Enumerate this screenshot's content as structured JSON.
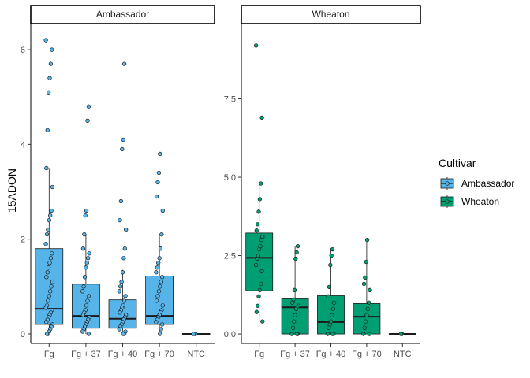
{
  "chart_data": {
    "type": "boxplot",
    "ylabel": "15ADON",
    "xlabel": "",
    "categories": [
      "Fg",
      "Fg + 37",
      "Fg + 40",
      "Fg + 70",
      "NTC"
    ],
    "legend": {
      "title": "Cultivar",
      "placement": "right",
      "entries": [
        {
          "name": "Ambassador",
          "color": "#56B4E9"
        },
        {
          "name": "Wheaton",
          "color": "#009E73"
        }
      ]
    },
    "facets": [
      {
        "title": "Ambassador",
        "color": "#56B4E9",
        "ylim": [
          -0.2,
          6.55
        ],
        "yticks": [
          0,
          2,
          4,
          6
        ],
        "ytick_labels": [
          "0",
          "2",
          "4",
          "6"
        ],
        "boxes": [
          {
            "category": "Fg",
            "q1": 0.2,
            "median": 0.53,
            "q3": 1.8,
            "whisker_low": 0.0,
            "whisker_high": 3.5,
            "points": [
              6.2,
              6.0,
              5.7,
              5.4,
              5.1,
              4.3,
              3.5,
              3.1,
              2.6,
              2.5,
              2.4,
              2.2,
              2.1,
              1.9,
              1.7,
              1.6,
              1.5,
              1.4,
              1.3,
              1.2,
              1.1,
              1.0,
              0.9,
              0.8,
              0.7,
              0.6,
              0.55,
              0.5,
              0.45,
              0.4,
              0.35,
              0.3,
              0.25,
              0.2,
              0.15,
              0.1,
              0.05,
              0.0,
              0.0
            ]
          },
          {
            "category": "Fg + 37",
            "q1": 0.12,
            "median": 0.38,
            "q3": 1.05,
            "whisker_low": 0.0,
            "whisker_high": 2.1,
            "points": [
              4.8,
              4.5,
              2.6,
              2.5,
              2.1,
              1.8,
              1.7,
              1.6,
              1.5,
              1.4,
              1.2,
              1.0,
              0.9,
              0.8,
              0.7,
              0.6,
              0.5,
              0.45,
              0.4,
              0.35,
              0.3,
              0.25,
              0.2,
              0.15,
              0.1,
              0.05,
              0.0
            ]
          },
          {
            "category": "Fg + 40",
            "q1": 0.12,
            "median": 0.32,
            "q3": 0.72,
            "whisker_low": 0.0,
            "whisker_high": 1.35,
            "points": [
              5.7,
              4.1,
              3.9,
              2.8,
              2.4,
              2.2,
              1.8,
              1.6,
              1.3,
              1.1,
              1.0,
              0.9,
              0.8,
              0.7,
              0.6,
              0.55,
              0.5,
              0.45,
              0.4,
              0.35,
              0.3,
              0.25,
              0.2,
              0.15,
              0.1,
              0.05,
              0.0,
              0.0
            ]
          },
          {
            "category": "Fg + 70",
            "q1": 0.2,
            "median": 0.38,
            "q3": 1.22,
            "whisker_low": 0.0,
            "whisker_high": 2.1,
            "points": [
              3.8,
              3.4,
              3.2,
              2.9,
              2.6,
              2.1,
              1.8,
              1.6,
              1.5,
              1.4,
              1.3,
              1.2,
              1.1,
              1.0,
              0.9,
              0.8,
              0.7,
              0.6,
              0.5,
              0.45,
              0.4,
              0.35,
              0.3,
              0.25,
              0.2,
              0.1,
              0.0
            ]
          },
          {
            "category": "NTC",
            "q1": 0.0,
            "median": 0.0,
            "q3": 0.0,
            "whisker_low": 0.0,
            "whisker_high": 0.0,
            "points": [
              0.0,
              0.0,
              0.0
            ]
          }
        ]
      },
      {
        "title": "Wheaton",
        "color": "#009E73",
        "ylim": [
          -0.3,
          9.9
        ],
        "yticks": [
          0,
          2.5,
          5,
          7.5
        ],
        "ytick_labels": [
          "0.0",
          "2.5",
          "5.0",
          "7.5"
        ],
        "boxes": [
          {
            "category": "Fg",
            "q1": 1.38,
            "median": 2.43,
            "q3": 3.22,
            "whisker_low": 0.38,
            "whisker_high": 4.8,
            "points": [
              9.2,
              6.9,
              4.8,
              4.3,
              3.9,
              3.5,
              3.3,
              3.1,
              3.0,
              2.8,
              2.7,
              2.5,
              2.4,
              2.2,
              2.0,
              1.6,
              1.4,
              1.2,
              0.9,
              0.7,
              0.4
            ]
          },
          {
            "category": "Fg + 37",
            "q1": 0.0,
            "median": 0.85,
            "q3": 1.12,
            "whisker_low": 0.0,
            "whisker_high": 2.8,
            "points": [
              2.8,
              2.6,
              2.4,
              1.4,
              1.1,
              1.0,
              0.9,
              0.85,
              0.8,
              0.6,
              0.4,
              0.2,
              0.0,
              0.0,
              0.0
            ]
          },
          {
            "category": "Fg + 40",
            "q1": 0.0,
            "median": 0.38,
            "q3": 1.22,
            "whisker_low": 0.0,
            "whisker_high": 2.7,
            "points": [
              2.7,
              2.5,
              2.2,
              1.5,
              1.2,
              1.0,
              0.8,
              0.6,
              0.4,
              0.3,
              0.2,
              0.0,
              0.0,
              0.0
            ]
          },
          {
            "category": "Fg + 70",
            "q1": 0.0,
            "median": 0.55,
            "q3": 0.97,
            "whisker_low": 0.0,
            "whisker_high": 3.0,
            "points": [
              3.0,
              2.3,
              1.8,
              1.6,
              1.4,
              1.0,
              0.8,
              0.6,
              0.4,
              0.2,
              0.0,
              0.0
            ]
          },
          {
            "category": "NTC",
            "q1": 0.0,
            "median": 0.0,
            "q3": 0.0,
            "whisker_low": 0.0,
            "whisker_high": 0.0,
            "points": [
              0.0,
              0.0
            ]
          }
        ]
      }
    ]
  }
}
